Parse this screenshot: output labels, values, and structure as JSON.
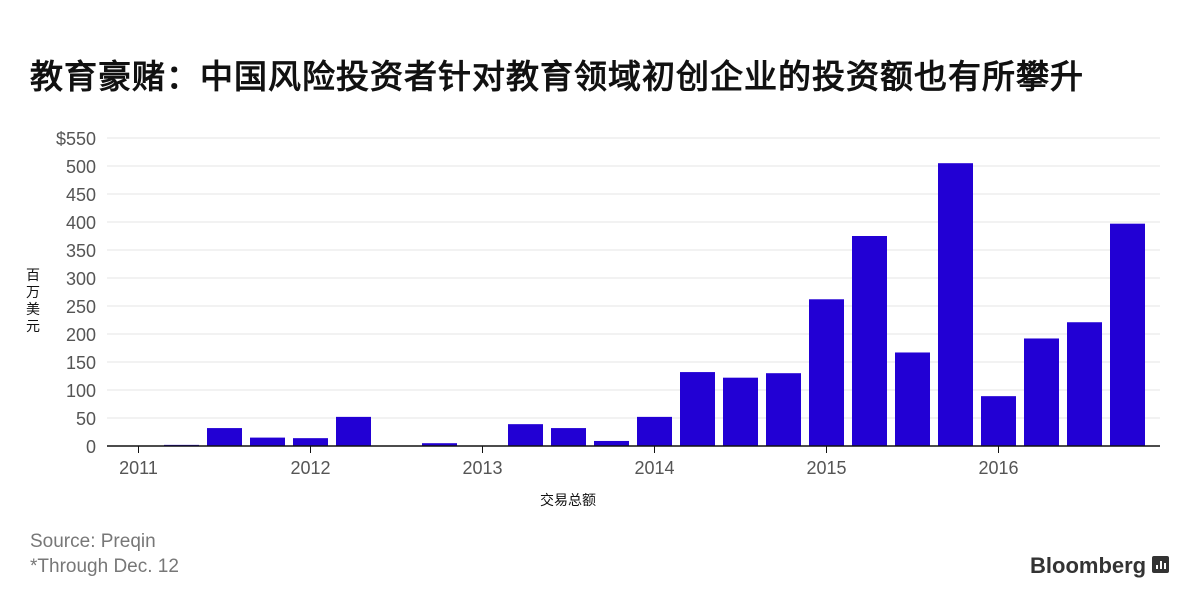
{
  "title": "教育豪赌：中国风险投资者针对教育领域初创企业的投资额也有所攀升",
  "source": "Source: Preqin",
  "note": "*Through Dec. 12",
  "brand": "Bloomberg",
  "chart_data": {
    "type": "bar",
    "title": "教育豪赌：中国风险投资者针对教育领域初创企业的投资额也有所攀升",
    "xlabel": "交易总额",
    "ylabel": "百万美元",
    "ylim": [
      0,
      550
    ],
    "yticks": [
      "0",
      "50",
      "100",
      "150",
      "200",
      "250",
      "300",
      "350",
      "400",
      "450",
      "500",
      "$550"
    ],
    "xtick_labels": [
      "2011",
      "2012",
      "2013",
      "2014",
      "2015",
      "2016"
    ],
    "grid": true,
    "bar_color": "#2200d4",
    "categories": [
      "2011 Q1",
      "2011 Q2",
      "2011 Q3",
      "2011 Q4",
      "2012 Q1",
      "2012 Q2",
      "2012 Q3",
      "2012 Q4",
      "2013 Q1",
      "2013 Q2",
      "2013 Q3",
      "2013 Q4",
      "2014 Q1",
      "2014 Q2",
      "2014 Q3",
      "2014 Q4",
      "2015 Q1",
      "2015 Q2",
      "2015 Q3",
      "2015 Q4",
      "2016 Q1",
      "2016 Q2",
      "2016 Q3",
      "2016 Q4"
    ],
    "values": [
      0,
      2,
      32,
      15,
      14,
      52,
      0,
      5,
      0,
      39,
      32,
      9,
      52,
      132,
      122,
      130,
      262,
      375,
      167,
      505,
      89,
      192,
      221,
      397
    ]
  }
}
